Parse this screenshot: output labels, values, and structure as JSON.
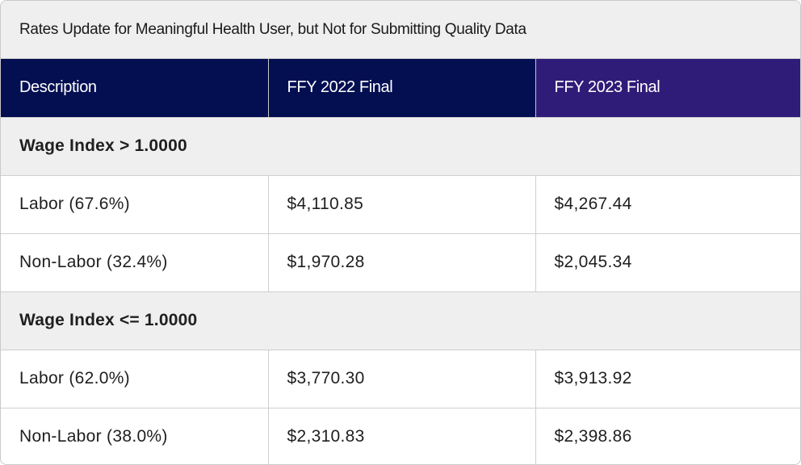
{
  "table": {
    "title": "Rates Update for Meaningful Health User, but Not for Submitting Quality Data",
    "headers": [
      "Description",
      "FFY 2022 Final",
      "FFY 2023 Final"
    ],
    "sections": [
      {
        "label": "Wage Index > 1.0000",
        "rows": [
          [
            "Labor (67.6%)",
            "$4,110.85",
            "$4,267.44"
          ],
          [
            "Non-Labor (32.4%)",
            "$1,970.28",
            "$2,045.34"
          ]
        ]
      },
      {
        "label": "Wage Index <= 1.0000",
        "rows": [
          [
            "Labor (62.0%)",
            "$3,770.30",
            "$3,913.92"
          ],
          [
            "Non-Labor (38.0%)",
            "$2,310.83",
            "$2,398.86"
          ]
        ]
      }
    ]
  },
  "colors": {
    "header_bg": "#040f52",
    "header_bg_accent": "#2f1c78",
    "section_bg": "#efefef"
  }
}
